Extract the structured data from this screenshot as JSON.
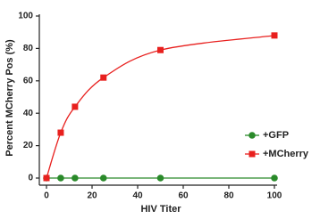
{
  "chart_data": {
    "type": "scatter",
    "x_label": "HIV Titer",
    "y_label": "Percent MCherry Pos (%)",
    "x": [
      0,
      6.25,
      12.5,
      25,
      50,
      100
    ],
    "series": [
      {
        "name": "+GFP",
        "color": "#2a8a2a",
        "marker": "circle",
        "values": [
          0,
          0,
          0,
          0,
          0,
          0
        ]
      },
      {
        "name": "+MCherry",
        "color": "#e8201e",
        "marker": "square",
        "values": [
          0,
          28,
          44,
          62,
          79,
          88
        ]
      }
    ],
    "xlim": [
      0,
      100
    ],
    "xticks": [
      0,
      20,
      40,
      60,
      80,
      100
    ],
    "ylim": [
      0,
      100
    ],
    "yticks": [
      0,
      20,
      40,
      60,
      80,
      100
    ],
    "legend": "right"
  }
}
